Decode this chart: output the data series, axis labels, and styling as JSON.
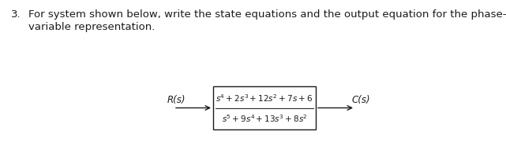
{
  "background_color": "#ffffff",
  "question_number": "3.",
  "question_text_line1": "For system shown below, write the state equations and the output equation for the phase-",
  "question_text_line2": "variable representation.",
  "text_fontsize": 9.5,
  "label_R": "R(s)",
  "label_C": "C(s)",
  "numerator": "$s^4+2s^3+12s^2+7s+6$",
  "denominator": "$s^5+9s^4+13s^3+8s^2$",
  "text_color": "#1a1a1a",
  "fig_width": 6.41,
  "fig_height": 1.81,
  "dpi": 100
}
